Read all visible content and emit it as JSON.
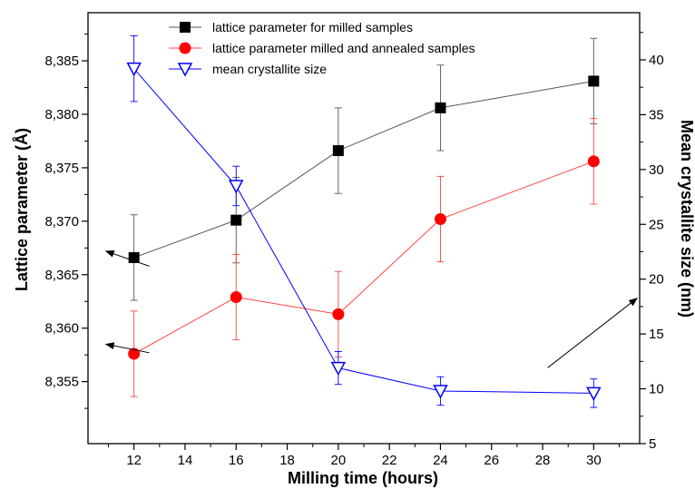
{
  "chart_data": {
    "type": "line",
    "xlabel": "Milling time (hours)",
    "ylabel_left": "Lattice parameter (Å)",
    "ylabel_right": "Mean crystallite size (nm)",
    "x_ticks": [
      "12",
      "14",
      "16",
      "18",
      "20",
      "22",
      "24",
      "26",
      "28",
      "30"
    ],
    "y_left_ticks": [
      "8,355",
      "8,360",
      "8,365",
      "8,370",
      "8,375",
      "8,380",
      "8,385"
    ],
    "y_right_ticks": [
      "5",
      "10",
      "15",
      "20",
      "25",
      "30",
      "35",
      "40"
    ],
    "xlim": [
      10.2,
      31.8
    ],
    "ylim_left": [
      8.3492,
      8.3895
    ],
    "ylim_right": [
      5,
      44.3
    ],
    "grid": false,
    "legend_position": "top-center",
    "series": [
      {
        "name": "lattice parameter for milled samples",
        "axis": "left",
        "marker": "square",
        "color": "#000000",
        "line_color": "#555555",
        "x": [
          12,
          16,
          20,
          24,
          30
        ],
        "y": [
          8.3666,
          8.3701,
          8.3766,
          8.3806,
          8.3831
        ],
        "err": [
          0.004,
          0.004,
          0.004,
          0.004,
          0.004
        ]
      },
      {
        "name": "lattice parameter milled and annealed samples",
        "axis": "left",
        "marker": "circle",
        "color": "#ff0000",
        "line_color": "#ff4444",
        "x": [
          12,
          16,
          20,
          24,
          30
        ],
        "y": [
          8.3576,
          8.3629,
          8.3613,
          8.3702,
          8.3756
        ],
        "err": [
          0.004,
          0.004,
          0.004,
          0.004,
          0.004
        ]
      },
      {
        "name": "mean crystallite size",
        "axis": "right",
        "marker": "triangle-down",
        "color": "#0000ff",
        "line_color": "#0000ff",
        "x": [
          12,
          16,
          20,
          24,
          30
        ],
        "y": [
          39.2,
          28.5,
          11.9,
          9.8,
          9.6
        ],
        "err": [
          3.0,
          1.8,
          1.5,
          1.3,
          1.3
        ]
      }
    ],
    "annotations": [
      {
        "type": "arrow",
        "from": [
          12.6,
          8.3658
        ],
        "to": [
          10.9,
          8.3672
        ],
        "axis": "left",
        "note": "points to left axis"
      },
      {
        "type": "arrow",
        "from": [
          12.6,
          8.3577
        ],
        "to": [
          10.9,
          8.3585
        ],
        "axis": "left",
        "note": "points to left axis"
      },
      {
        "type": "arrow",
        "from": [
          28.2,
          8.3563
        ],
        "to": [
          31.7,
          8.3628
        ],
        "axis": "left",
        "note": "points to right axis"
      }
    ]
  }
}
